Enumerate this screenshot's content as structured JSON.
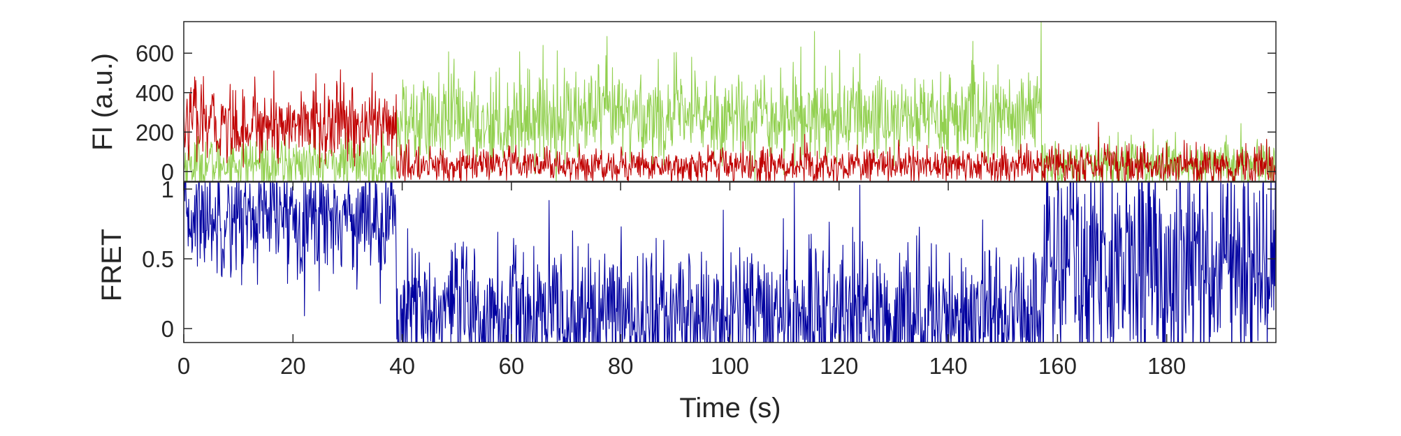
{
  "chart_data": [
    {
      "type": "line",
      "panel": "top",
      "ylabel": "FI (a.u.)",
      "xlabel": "",
      "xlim": [
        0,
        200
      ],
      "ylim": [
        -50,
        760
      ],
      "yticks": [
        0,
        200,
        400,
        600
      ],
      "ytick_labels": [
        "0",
        "200",
        "400",
        "600"
      ],
      "grid": false,
      "series": [
        {
          "color": "#92d050",
          "segments": [
            {
              "x_range": [
                0,
                39
              ],
              "mean": 40,
              "sd": 70
            },
            {
              "x_range": [
                39,
                60
              ],
              "mean": 250,
              "sd": 120
            },
            {
              "x_range": [
                60,
                157
              ],
              "mean": 280,
              "sd": 120
            },
            {
              "x_range": [
                157,
                200
              ],
              "mean": 40,
              "sd": 60
            }
          ],
          "peaks": [
            [
              49.5,
              570
            ],
            [
              77.5,
              685
            ],
            [
              115.5,
              710
            ],
            [
              157,
              760
            ],
            [
              169.5,
              180
            ]
          ]
        },
        {
          "color": "#c00000",
          "segments": [
            {
              "x_range": [
                0,
                39
              ],
              "mean": 240,
              "sd": 95
            },
            {
              "x_range": [
                39,
                157
              ],
              "mean": 30,
              "sd": 45
            },
            {
              "x_range": [
                157,
                200
              ],
              "mean": 30,
              "sd": 55
            }
          ],
          "peaks": [
            [
              2,
              480
            ],
            [
              13,
              480
            ],
            [
              16.5,
              510
            ],
            [
              34.5,
              500
            ],
            [
              167.5,
              250
            ]
          ]
        }
      ]
    },
    {
      "type": "line",
      "panel": "bottom",
      "ylabel": "FRET",
      "xlabel": "Time (s)",
      "xlim": [
        0,
        200
      ],
      "ylim": [
        -0.1,
        1.05
      ],
      "yticks": [
        0,
        0.5,
        1
      ],
      "ytick_labels": [
        "0",
        "0.5",
        "1"
      ],
      "xticks": [
        0,
        20,
        40,
        60,
        80,
        100,
        120,
        140,
        160,
        180
      ],
      "xtick_labels": [
        "0",
        "20",
        "40",
        "60",
        "80",
        "100",
        "120",
        "140",
        "160",
        "180"
      ],
      "grid": false,
      "series": [
        {
          "color": "#0000a0",
          "segments": [
            {
              "x_range": [
                0,
                39
              ],
              "mean": 0.8,
              "sd": 0.2
            },
            {
              "x_range": [
                39,
                157
              ],
              "mean": 0.1,
              "sd": 0.25
            },
            {
              "x_range": [
                157,
                200
              ],
              "mean": 0.5,
              "sd": 0.4
            }
          ]
        }
      ]
    }
  ]
}
